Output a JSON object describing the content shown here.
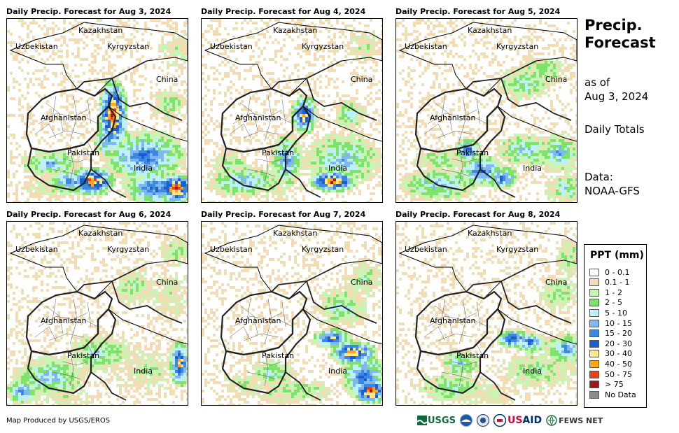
{
  "panels": [
    {
      "title": "Daily Precip. Forecast for Aug 3, 2024",
      "scenario": 0
    },
    {
      "title": "Daily Precip. Forecast for Aug 4, 2024",
      "scenario": 1
    },
    {
      "title": "Daily Precip. Forecast for Aug 5, 2024",
      "scenario": 2
    },
    {
      "title": "Daily Precip. Forecast for Aug 6, 2024",
      "scenario": 3
    },
    {
      "title": "Daily Precip. Forecast for Aug 7, 2024",
      "scenario": 4
    },
    {
      "title": "Daily Precip. Forecast for Aug 8, 2024",
      "scenario": 5
    }
  ],
  "map_labels": {
    "kazakhstan": "Kazakhstan",
    "uzbekistan": "Uzbekistan",
    "kyrgyzstan": "Kyrgyzstan",
    "china": "China",
    "afghanistan": "Afghanistan",
    "pakistan": "Pakistan",
    "india": "India"
  },
  "side": {
    "title_line1": "Precip.",
    "title_line2": "Forecast",
    "asof_line1": "as of",
    "asof_line2": "Aug 3, 2024",
    "totals": "Daily Totals",
    "data_line1": "Data:",
    "data_line2": "NOAA-GFS"
  },
  "legend": {
    "title": "PPT (mm)",
    "items": [
      {
        "label": "0 - 0.1",
        "color": "#ffffff"
      },
      {
        "label": "0.1 - 1",
        "color": "#f2dcb4"
      },
      {
        "label": "1 - 2",
        "color": "#c6f5b4"
      },
      {
        "label": "2 - 5",
        "color": "#7de36b"
      },
      {
        "label": "5 - 10",
        "color": "#bdeffc"
      },
      {
        "label": "10 - 15",
        "color": "#7fb7ef"
      },
      {
        "label": "15 - 20",
        "color": "#3c88e0"
      },
      {
        "label": "20 - 30",
        "color": "#1a5ecf"
      },
      {
        "label": "30 - 40",
        "color": "#ffe78a"
      },
      {
        "label": "40 - 50",
        "color": "#ffa21c"
      },
      {
        "label": "50 - 75",
        "color": "#f03c10"
      },
      {
        "label": "> 75",
        "color": "#a3161a"
      },
      {
        "label": "No Data",
        "color": "#8c8c8c"
      }
    ]
  },
  "credit": "Map Produced by USGS/EROS",
  "logos": {
    "usgs": "USGS",
    "usaid": "USAID",
    "fewsnet": "FEWS NET"
  }
}
